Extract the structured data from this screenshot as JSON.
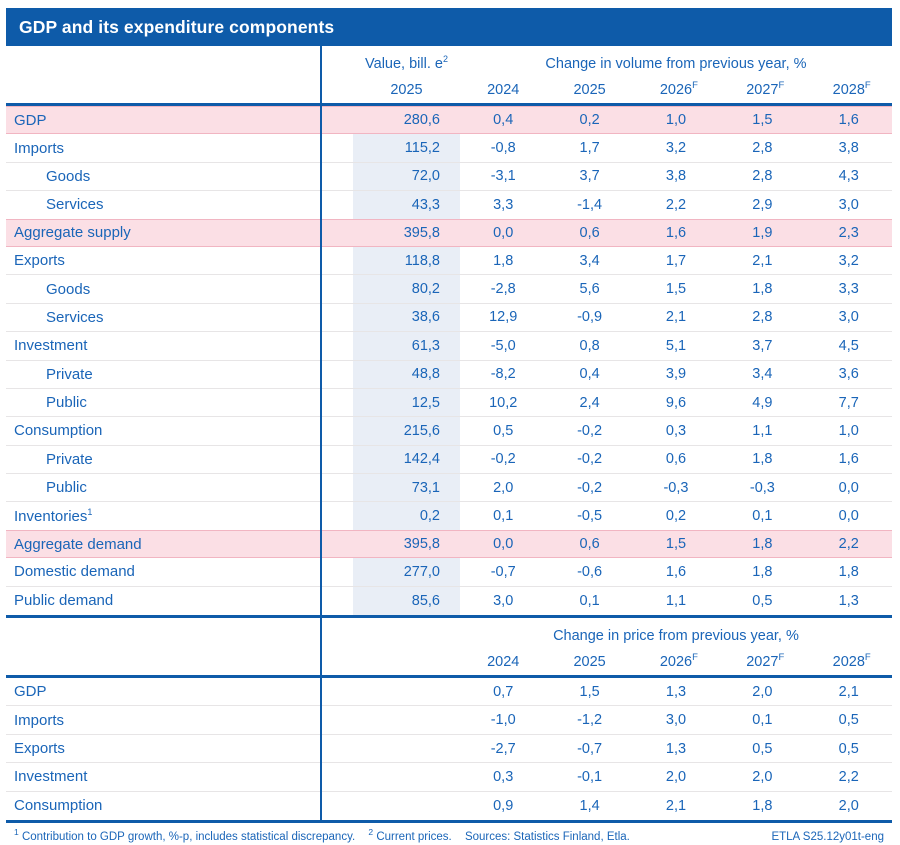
{
  "title": "GDP and its expenditure components",
  "colors": {
    "accent_blue": "#0e5ba9",
    "text_blue": "#1a65b8",
    "highlight_pink": "#fbdfe5",
    "pink_border": "#f1b5c2",
    "value_column_shade": "#e9eef6"
  },
  "chart_data": [
    {
      "type": "table",
      "title": "Change in volume from previous year, %",
      "value_col": {
        "header": "Value, bill. e",
        "header_sup": "2",
        "subheader": "2025"
      },
      "years": [
        "2024",
        "2025",
        "2026",
        "2027",
        "2028"
      ],
      "forecast_flags": [
        false,
        false,
        true,
        true,
        true
      ],
      "forecast_sup": "F",
      "rows": [
        {
          "label": "GDP",
          "indent": 0,
          "highlight": true,
          "value": "280,6",
          "changes": [
            "0,4",
            "0,2",
            "1,0",
            "1,5",
            "1,6"
          ]
        },
        {
          "label": "Imports",
          "indent": 0,
          "highlight": false,
          "value": "115,2",
          "changes": [
            "-0,8",
            "1,7",
            "3,2",
            "2,8",
            "3,8"
          ]
        },
        {
          "label": "Goods",
          "indent": 1,
          "highlight": false,
          "value": "72,0",
          "changes": [
            "-3,1",
            "3,7",
            "3,8",
            "2,8",
            "4,3"
          ]
        },
        {
          "label": "Services",
          "indent": 1,
          "highlight": false,
          "value": "43,3",
          "changes": [
            "3,3",
            "-1,4",
            "2,2",
            "2,9",
            "3,0"
          ]
        },
        {
          "label": "Aggregate supply",
          "indent": 0,
          "highlight": true,
          "value": "395,8",
          "changes": [
            "0,0",
            "0,6",
            "1,6",
            "1,9",
            "2,3"
          ]
        },
        {
          "label": "Exports",
          "indent": 0,
          "highlight": false,
          "value": "118,8",
          "changes": [
            "1,8",
            "3,4",
            "1,7",
            "2,1",
            "3,2"
          ]
        },
        {
          "label": "Goods",
          "indent": 1,
          "highlight": false,
          "value": "80,2",
          "changes": [
            "-2,8",
            "5,6",
            "1,5",
            "1,8",
            "3,3"
          ]
        },
        {
          "label": "Services",
          "indent": 1,
          "highlight": false,
          "value": "38,6",
          "changes": [
            "12,9",
            "-0,9",
            "2,1",
            "2,8",
            "3,0"
          ]
        },
        {
          "label": "Investment",
          "indent": 0,
          "highlight": false,
          "value": "61,3",
          "changes": [
            "-5,0",
            "0,8",
            "5,1",
            "3,7",
            "4,5"
          ]
        },
        {
          "label": "Private",
          "indent": 1,
          "highlight": false,
          "value": "48,8",
          "changes": [
            "-8,2",
            "0,4",
            "3,9",
            "3,4",
            "3,6"
          ]
        },
        {
          "label": "Public",
          "indent": 1,
          "highlight": false,
          "value": "12,5",
          "changes": [
            "10,2",
            "2,4",
            "9,6",
            "4,9",
            "7,7"
          ]
        },
        {
          "label": "Consumption",
          "indent": 0,
          "highlight": false,
          "value": "215,6",
          "changes": [
            "0,5",
            "-0,2",
            "0,3",
            "1,1",
            "1,0"
          ]
        },
        {
          "label": "Private",
          "indent": 1,
          "highlight": false,
          "value": "142,4",
          "changes": [
            "-0,2",
            "-0,2",
            "0,6",
            "1,8",
            "1,6"
          ]
        },
        {
          "label": "Public",
          "indent": 1,
          "highlight": false,
          "value": "73,1",
          "changes": [
            "2,0",
            "-0,2",
            "-0,3",
            "-0,3",
            "0,0"
          ]
        },
        {
          "label": "Inventories",
          "label_sup": "1",
          "indent": 0,
          "highlight": false,
          "value": "0,2",
          "changes": [
            "0,1",
            "-0,5",
            "0,2",
            "0,1",
            "0,0"
          ]
        },
        {
          "label": "Aggregate demand",
          "indent": 0,
          "highlight": true,
          "value": "395,8",
          "changes": [
            "0,0",
            "0,6",
            "1,5",
            "1,8",
            "2,2"
          ]
        },
        {
          "label": "Domestic demand",
          "indent": 0,
          "highlight": false,
          "value": "277,0",
          "changes": [
            "-0,7",
            "-0,6",
            "1,6",
            "1,8",
            "1,8"
          ]
        },
        {
          "label": "Public demand",
          "indent": 0,
          "highlight": false,
          "value": "85,6",
          "changes": [
            "3,0",
            "0,1",
            "1,1",
            "0,5",
            "1,3"
          ]
        }
      ]
    },
    {
      "type": "table",
      "title": "Change in price from previous year, %",
      "years": [
        "2024",
        "2025",
        "2026",
        "2027",
        "2028"
      ],
      "forecast_flags": [
        false,
        false,
        true,
        true,
        true
      ],
      "forecast_sup": "F",
      "rows": [
        {
          "label": "GDP",
          "indent": 0,
          "highlight": false,
          "changes": [
            "0,7",
            "1,5",
            "1,3",
            "2,0",
            "2,1"
          ]
        },
        {
          "label": "Imports",
          "indent": 0,
          "highlight": false,
          "changes": [
            "-1,0",
            "-1,2",
            "3,0",
            "0,1",
            "0,5"
          ]
        },
        {
          "label": "Exports",
          "indent": 0,
          "highlight": false,
          "changes": [
            "-2,7",
            "-0,7",
            "1,3",
            "0,5",
            "0,5"
          ]
        },
        {
          "label": "Investment",
          "indent": 0,
          "highlight": false,
          "changes": [
            "0,3",
            "-0,1",
            "2,0",
            "2,0",
            "2,2"
          ]
        },
        {
          "label": "Consumption",
          "indent": 0,
          "highlight": false,
          "changes": [
            "0,9",
            "1,4",
            "2,1",
            "1,8",
            "2,0"
          ]
        }
      ]
    }
  ],
  "footer": {
    "note1_sup": "1",
    "note1": "Contribution to GDP growth, %-p, includes statistical discrepancy.",
    "note2_sup": "2",
    "note2": "Current prices.",
    "sources": "Sources: Statistics Finland, Etla.",
    "right": "ETLA S25.12y01t-eng"
  }
}
